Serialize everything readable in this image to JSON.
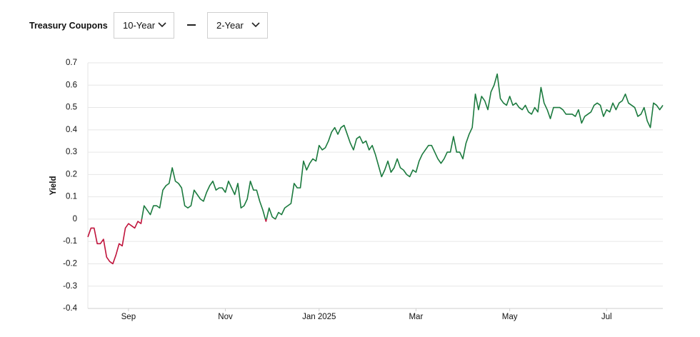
{
  "controls": {
    "label": "Treasury Coupons",
    "first": "10-Year",
    "second": "2-Year"
  },
  "chart_data": {
    "type": "line",
    "y_label": "Yield",
    "color": "#1b7a3e",
    "negative_color": "#c0143c",
    "grid": true,
    "values": [
      -0.08,
      -0.04,
      -0.04,
      -0.11,
      -0.11,
      -0.09,
      -0.17,
      -0.19,
      -0.2,
      -0.16,
      -0.11,
      -0.12,
      -0.04,
      -0.02,
      -0.03,
      -0.04,
      -0.01,
      -0.02,
      0.06,
      0.04,
      0.02,
      0.06,
      0.06,
      0.05,
      0.13,
      0.15,
      0.16,
      0.23,
      0.17,
      0.16,
      0.14,
      0.06,
      0.05,
      0.06,
      0.13,
      0.11,
      0.09,
      0.08,
      0.12,
      0.15,
      0.17,
      0.13,
      0.14,
      0.14,
      0.12,
      0.17,
      0.14,
      0.11,
      0.16,
      0.05,
      0.06,
      0.09,
      0.17,
      0.13,
      0.13,
      0.08,
      0.04,
      -0.01,
      0.05,
      0.01,
      0,
      0.03,
      0.02,
      0.05,
      0.06,
      0.07,
      0.16,
      0.14,
      0.14,
      0.26,
      0.22,
      0.25,
      0.27,
      0.26,
      0.33,
      0.31,
      0.32,
      0.35,
      0.39,
      0.41,
      0.38,
      0.41,
      0.42,
      0.38,
      0.34,
      0.31,
      0.36,
      0.37,
      0.34,
      0.35,
      0.31,
      0.33,
      0.29,
      0.24,
      0.19,
      0.22,
      0.26,
      0.21,
      0.23,
      0.27,
      0.23,
      0.22,
      0.2,
      0.19,
      0.22,
      0.21,
      0.26,
      0.29,
      0.31,
      0.33,
      0.33,
      0.3,
      0.27,
      0.25,
      0.27,
      0.3,
      0.3,
      0.37,
      0.3,
      0.3,
      0.27,
      0.34,
      0.38,
      0.41,
      0.56,
      0.49,
      0.55,
      0.53,
      0.49,
      0.57,
      0.6,
      0.65,
      0.54,
      0.52,
      0.51,
      0.55,
      0.51,
      0.52,
      0.5,
      0.49,
      0.51,
      0.48,
      0.47,
      0.5,
      0.48,
      0.59,
      0.52,
      0.49,
      0.45,
      0.5,
      0.5,
      0.5,
      0.49,
      0.47,
      0.47,
      0.47,
      0.46,
      0.49,
      0.43,
      0.46,
      0.47,
      0.48,
      0.51,
      0.52,
      0.51,
      0.46,
      0.49,
      0.48,
      0.52,
      0.49,
      0.52,
      0.53,
      0.56,
      0.52,
      0.51,
      0.5,
      0.46,
      0.47,
      0.5,
      0.44,
      0.41,
      0.52,
      0.51,
      0.49,
      0.51
    ],
    "xlim": [
      0,
      184
    ],
    "xticks": [
      {
        "value": 13,
        "label": "Sep"
      },
      {
        "value": 44,
        "label": "Nov"
      },
      {
        "value": 74,
        "label": "Jan 2025"
      },
      {
        "value": 105,
        "label": "Mar"
      },
      {
        "value": 135,
        "label": "May"
      },
      {
        "value": 166,
        "label": "Jul"
      }
    ],
    "ylim": [
      -0.4,
      0.7
    ],
    "yticks": [
      0.7,
      0.6,
      0.5,
      0.4,
      0.3,
      0.2,
      0.1,
      0,
      -0.1,
      -0.2,
      -0.3,
      -0.4
    ]
  }
}
